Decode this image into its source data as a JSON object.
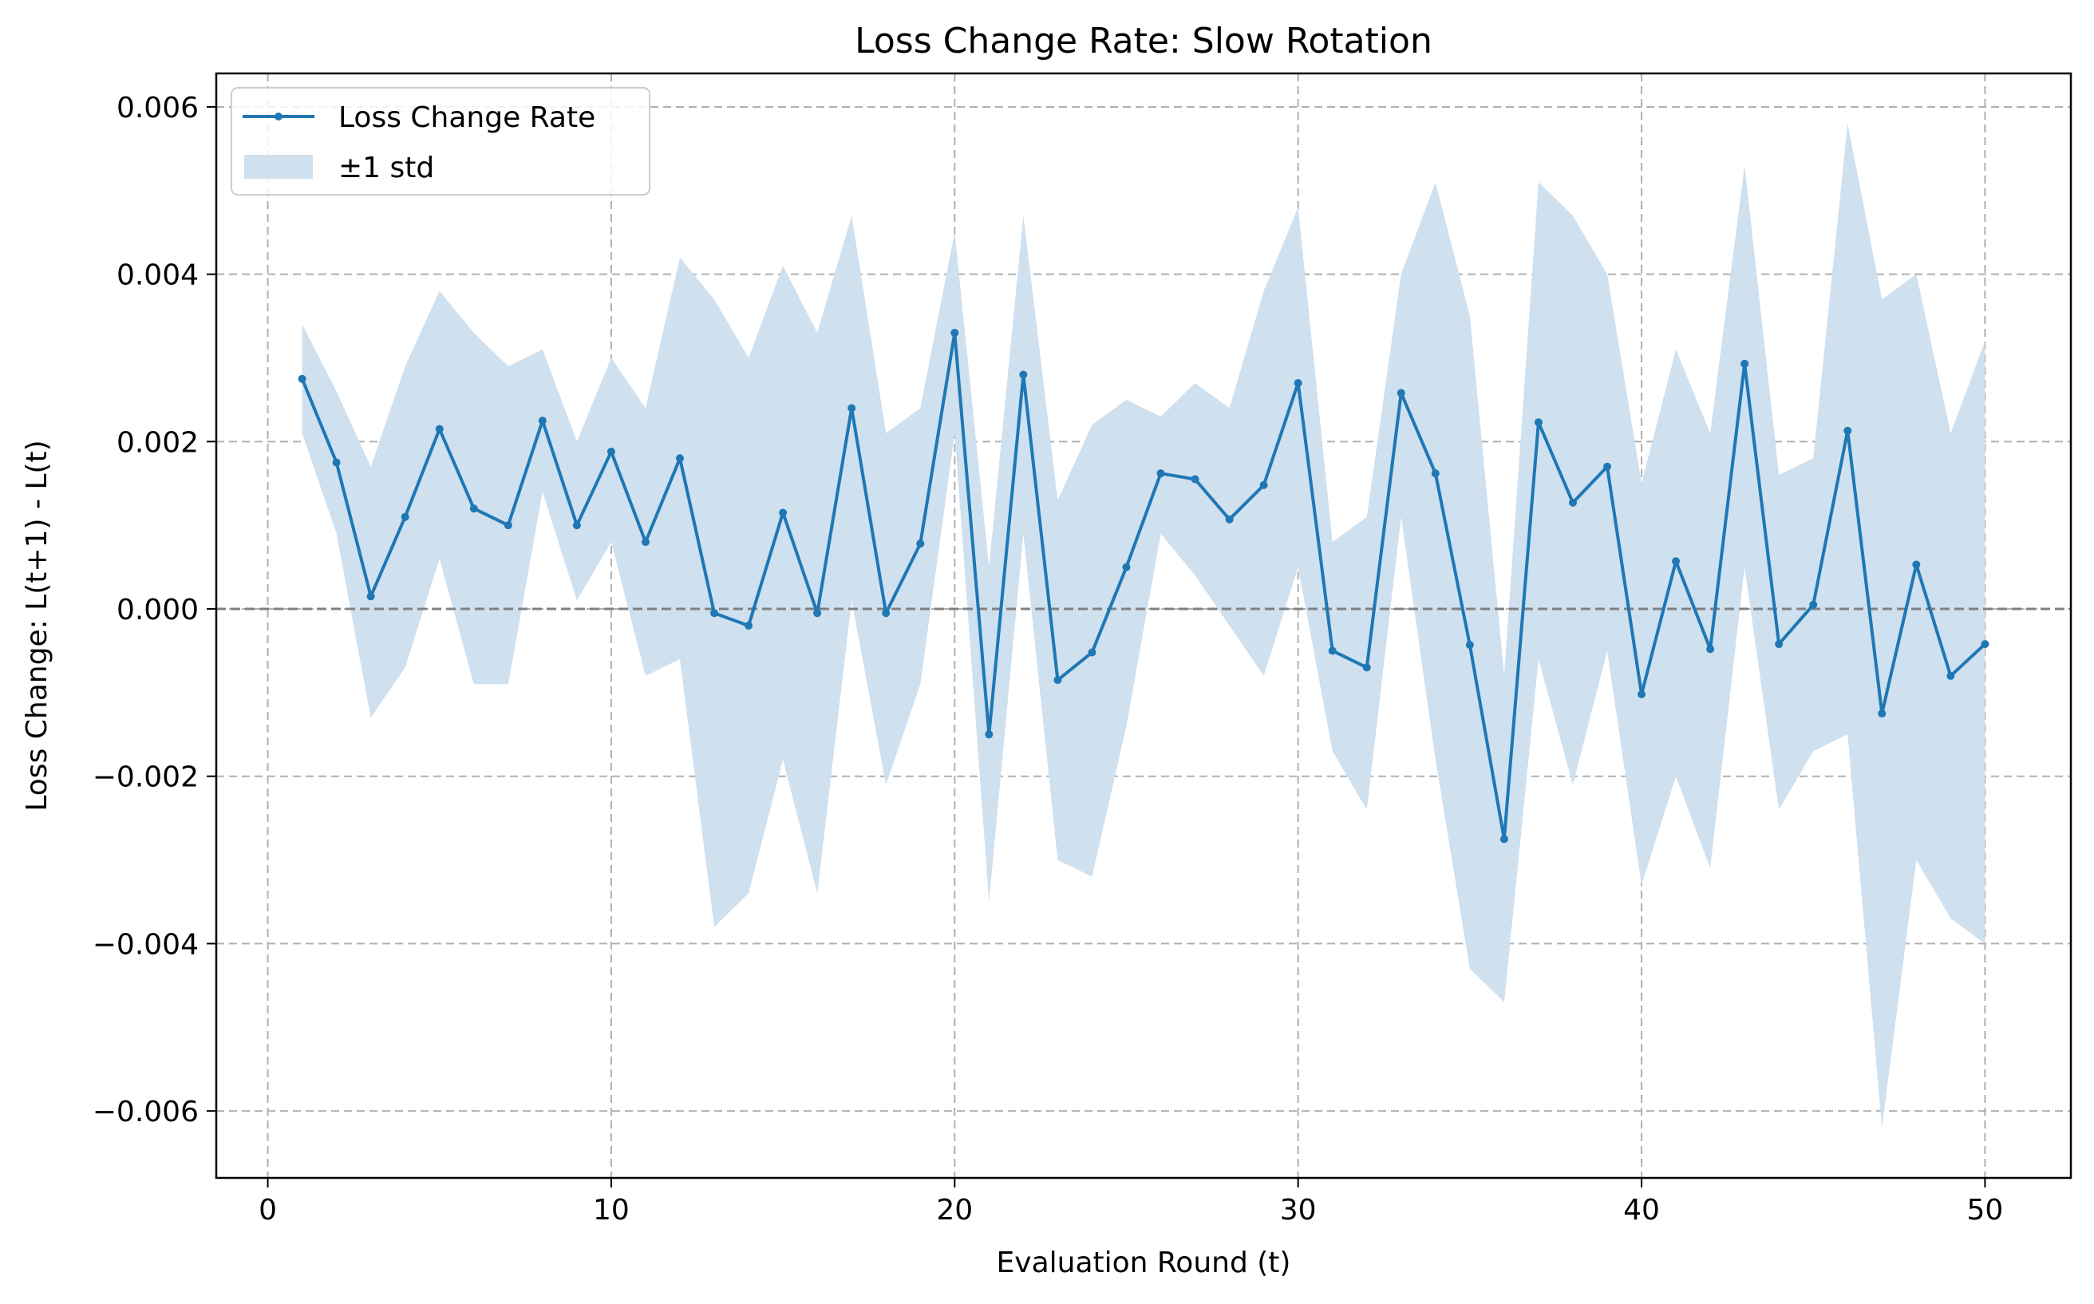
{
  "chart_data": {
    "type": "line",
    "title": "Loss Change Rate: Slow Rotation",
    "xlabel": "Evaluation Round (t)",
    "ylabel": "Loss Change: L(t+1) - L(t)",
    "xlim": [
      -1.5,
      52.5
    ],
    "ylim": [
      -0.0068,
      0.0064
    ],
    "x_ticks": [
      0,
      10,
      20,
      30,
      40,
      50
    ],
    "y_ticks": [
      -0.006,
      -0.004,
      -0.002,
      0.0,
      0.002,
      0.004,
      0.006
    ],
    "x_tick_labels": [
      "0",
      "10",
      "20",
      "30",
      "40",
      "50"
    ],
    "y_tick_labels": [
      "−0.006",
      "−0.004",
      "−0.002",
      "0.000",
      "0.002",
      "0.004",
      "0.006"
    ],
    "grid": true,
    "reference_line_y": 0,
    "legend_position": "top-left",
    "colors": {
      "line": "#1f77b4",
      "band": "#cfe0ef",
      "zero_line": "#808080"
    },
    "series": [
      {
        "name": "Loss Change Rate",
        "x": [
          1,
          2,
          3,
          4,
          5,
          6,
          7,
          8,
          9,
          10,
          11,
          12,
          13,
          14,
          15,
          16,
          17,
          18,
          19,
          20,
          21,
          22,
          23,
          24,
          25,
          26,
          27,
          28,
          29,
          30,
          31,
          32,
          33,
          34,
          35,
          36,
          37,
          38,
          39,
          40,
          41,
          42,
          43,
          44,
          45,
          46,
          47,
          48,
          49,
          50
        ],
        "values": [
          0.00275,
          0.00175,
          0.00015,
          0.0011,
          0.00215,
          0.0012,
          0.001,
          0.00225,
          0.001,
          0.00188,
          0.0008,
          0.0018,
          -5e-05,
          -0.0002,
          0.00115,
          -5e-05,
          0.0024,
          -5e-05,
          0.00078,
          0.0033,
          -0.0015,
          0.0028,
          -0.00085,
          -0.00052,
          0.0005,
          0.00162,
          0.00155,
          0.00107,
          0.00148,
          0.0027,
          -0.0005,
          -0.0007,
          0.00258,
          0.00162,
          -0.00043,
          -0.00275,
          0.00223,
          0.00127,
          0.0017,
          -0.00102,
          0.00057,
          -0.00048,
          0.00293,
          -0.00042,
          5e-05,
          0.00213,
          -0.00125,
          0.00053,
          -0.0008,
          -0.00042
        ]
      }
    ],
    "band": {
      "name": "±1 std",
      "upper": [
        0.0034,
        0.0026,
        0.0017,
        0.0029,
        0.0038,
        0.0033,
        0.0029,
        0.0031,
        0.002,
        0.003,
        0.0024,
        0.0042,
        0.0037,
        0.003,
        0.0041,
        0.0033,
        0.0047,
        0.0021,
        0.0024,
        0.0045,
        0.0005,
        0.0047,
        0.0013,
        0.0022,
        0.0025,
        0.0023,
        0.0027,
        0.0024,
        0.0038,
        0.0048,
        0.0008,
        0.0011,
        0.004,
        0.0051,
        0.0035,
        -0.0008,
        0.0051,
        0.0047,
        0.004,
        0.0015,
        0.0031,
        0.0021,
        0.0053,
        0.0016,
        0.0018,
        0.0058,
        0.0037,
        0.004,
        0.0021,
        0.0032
      ],
      "lower": [
        0.0021,
        0.0009,
        -0.0013,
        -0.0007,
        0.0006,
        -0.0009,
        -0.0009,
        0.0014,
        0.0001,
        0.0008,
        -0.0008,
        -0.0006,
        -0.0038,
        -0.0034,
        -0.0018,
        -0.0034,
        0.0001,
        -0.0021,
        -0.0009,
        0.0021,
        -0.0035,
        0.0009,
        -0.003,
        -0.0032,
        -0.0014,
        0.0009,
        0.0004,
        -0.0002,
        -0.0008,
        0.0005,
        -0.0017,
        -0.0024,
        0.0011,
        -0.0018,
        -0.0043,
        -0.0047,
        -0.0006,
        -0.0021,
        -0.0005,
        -0.0033,
        -0.002,
        -0.0031,
        0.0005,
        -0.0024,
        -0.0017,
        -0.0015,
        -0.0062,
        -0.003,
        -0.0037,
        -0.004
      ]
    }
  }
}
